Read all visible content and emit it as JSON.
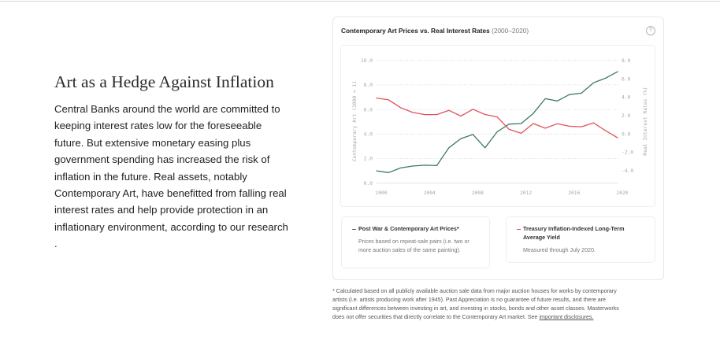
{
  "page": {
    "heading": "Art as a Hedge Against Inflation",
    "body_lines": [
      "Central Banks around the world are committed to",
      "keeping interest rates low for the foreseeable",
      "future. But extensive monetary easing plus",
      "government spending has increased the risk of",
      "inflation in the future. Real assets, notably",
      "Contemporary Art, have benefitted from falling real",
      "interest rates and help provide protection in an",
      "inflationary environment, according to our research",
      "."
    ]
  },
  "card": {
    "title": "Contemporary Art Prices vs. Real Interest Rates",
    "subtitle": " (2000–2020)",
    "help_icon": "?"
  },
  "legend": [
    {
      "title": "Post War & Contemporary Art Prices*",
      "description": "Prices based on repeat-sale pairs (i.e. two or more auction sales of the same painting).",
      "color": "#3c7a60"
    },
    {
      "title": "Treasury Inflation-Indexed Long-Term Average Yield",
      "description": "Measured through July 2020.",
      "color": "#e0525a"
    }
  ],
  "footnote": {
    "lines": [
      "* Calculated based on all publicly available auction sale data from major auction houses for works by contemporary",
      "artists (i.e. artists producing work after 1945). Past Appreciation is no guarantee of future results, and there are",
      "significant differences between investing in art, and investing in stocks, bonds and other asset classes. Masterworks",
      "does not offer securities that directly correlate to the Contemporary Art market. See "
    ],
    "link": "important disclosures."
  },
  "colors": {
    "art_series": "#3c7a60",
    "rate_series": "#e0525a",
    "axis_text": "#a8a8a8",
    "grid": "#cfcfcf"
  },
  "chart_data": {
    "type": "line",
    "title": "Contemporary Art Prices vs. Real Interest Rates (2000–2020)",
    "x": [
      2000,
      2001,
      2002,
      2003,
      2004,
      2005,
      2006,
      2007,
      2008,
      2009,
      2010,
      2011,
      2012,
      2013,
      2014,
      2015,
      2016,
      2017,
      2018,
      2019,
      2020
    ],
    "xticks": [
      2000,
      2004,
      2008,
      2012,
      2016,
      2020
    ],
    "xtick_labels": [
      "2000",
      "2004",
      "2008",
      "2012",
      "2016",
      "2020"
    ],
    "xlim": [
      2000,
      2020
    ],
    "ylabel_left": "Contemporary Art (2000 = 1)",
    "ylim_left": [
      0,
      10
    ],
    "yticks_left": [
      0,
      2,
      4,
      6,
      8,
      10
    ],
    "ytick_labels_left": [
      "0.0",
      "2.0",
      "4.0",
      "6.0",
      "8.0",
      "10.0"
    ],
    "ylabel_right": "Real Interest Rates (%)",
    "ylim_right": [
      -5.36,
      8
    ],
    "yticks_right": [
      -4,
      -2,
      0,
      2,
      4,
      6,
      8
    ],
    "ytick_labels_right": [
      "-4.0",
      "-2.0",
      "0.0",
      "2.0",
      "4.0",
      "6.0",
      "8.0"
    ],
    "grid": "dotted horizontal (left axis)",
    "legend": "below chart",
    "series": [
      {
        "name": "Post War & Contemporary Art Prices*",
        "axis": "left",
        "color": "#3c7a60",
        "values": [
          1.0,
          0.86,
          1.24,
          1.39,
          1.46,
          1.43,
          2.88,
          3.63,
          3.96,
          2.88,
          4.17,
          4.81,
          4.85,
          5.67,
          6.88,
          6.69,
          7.21,
          7.33,
          8.17,
          8.55,
          9.08
        ]
      },
      {
        "name": "Treasury Inflation-Indexed Long-Term Average Yield",
        "axis": "right",
        "color": "#e0525a",
        "values": [
          3.9,
          3.7,
          2.85,
          2.33,
          2.1,
          2.1,
          2.56,
          1.94,
          2.68,
          2.11,
          1.85,
          0.49,
          0.06,
          1.12,
          0.62,
          1.11,
          0.83,
          0.77,
          1.2,
          0.34,
          -0.43
        ]
      }
    ]
  }
}
